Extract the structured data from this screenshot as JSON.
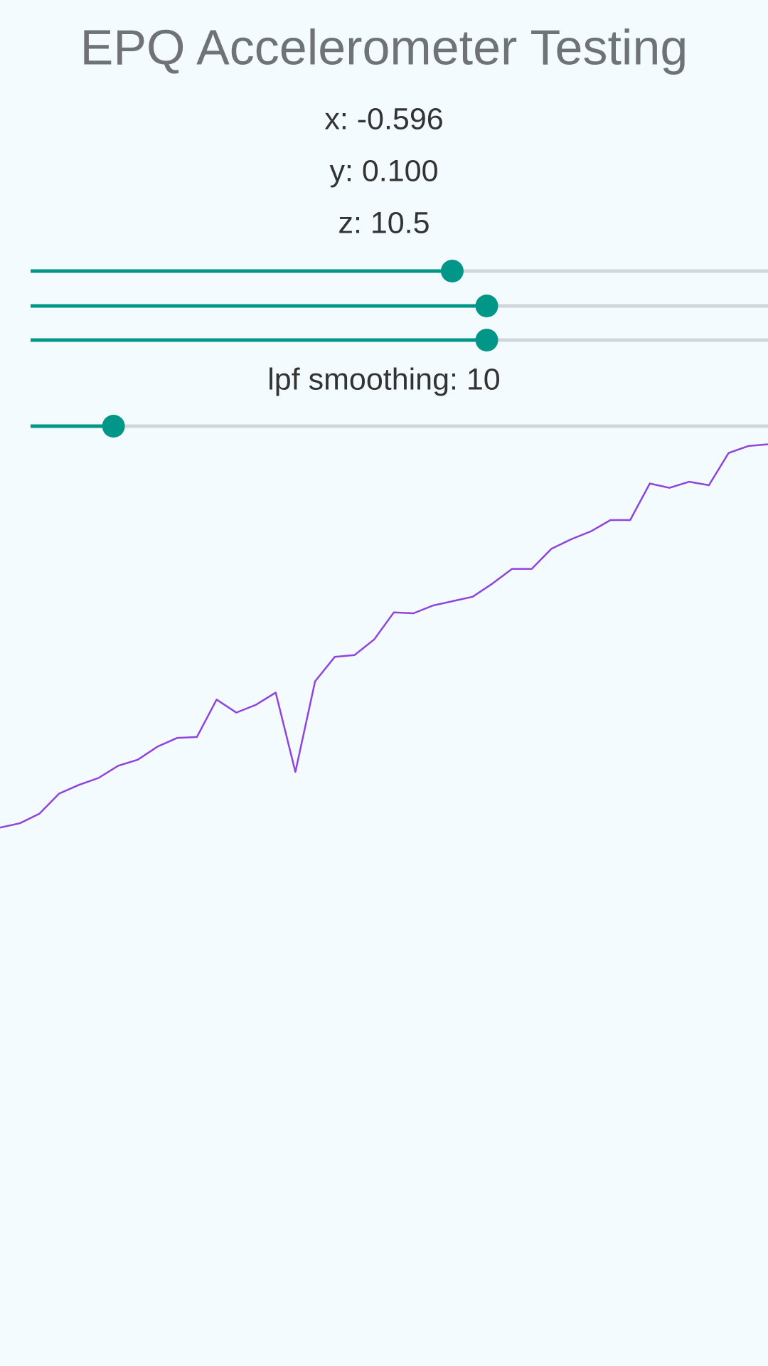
{
  "header": {
    "title": "EPQ Accelerometer Testing"
  },
  "readings": [
    "x: -0.596",
    "y: 0.100",
    "z: 10.5"
  ],
  "sliders": [
    {
      "value": 54.9
    },
    {
      "value": 59.4
    },
    {
      "value": 59.4
    }
  ],
  "smoothing": {
    "label": "lpf smoothing: 10",
    "slider": {
      "value": 10.8
    }
  },
  "slider_range": [
    0,
    100
  ],
  "plot": {
    "type": "line",
    "color": "#8e44dd",
    "ylim": [
      0,
      1000
    ],
    "values": [
      50,
      55,
      66,
      89,
      99,
      107,
      121,
      128,
      143,
      153,
      154,
      197,
      182,
      191,
      205,
      114,
      218,
      246,
      248,
      266,
      297,
      296,
      305,
      310,
      315,
      330,
      347,
      347,
      370,
      381,
      390,
      403,
      403,
      445,
      440,
      447,
      443,
      480,
      488,
      490
    ]
  }
}
